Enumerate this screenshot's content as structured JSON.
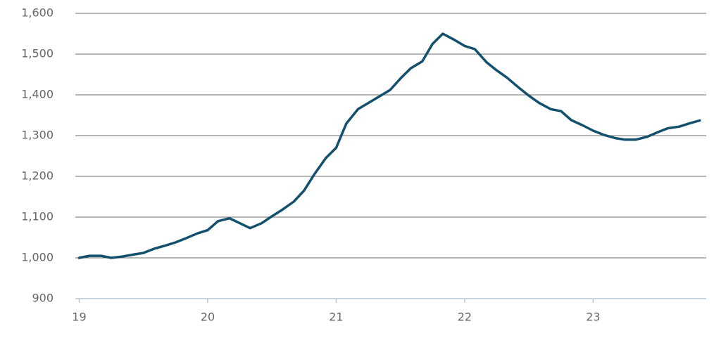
{
  "chart_data": {
    "type": "line",
    "x": [
      19.0,
      19.08,
      19.17,
      19.25,
      19.33,
      19.42,
      19.5,
      19.58,
      19.67,
      19.75,
      19.83,
      19.92,
      20.0,
      20.08,
      20.17,
      20.25,
      20.33,
      20.42,
      20.5,
      20.58,
      20.67,
      20.75,
      20.83,
      20.92,
      21.0,
      21.08,
      21.17,
      21.25,
      21.33,
      21.42,
      21.5,
      21.58,
      21.67,
      21.75,
      21.83,
      21.92,
      22.0,
      22.08,
      22.17,
      22.25,
      22.33,
      22.42,
      22.5,
      22.58,
      22.67,
      22.75,
      22.83,
      22.92,
      23.0,
      23.08,
      23.17,
      23.25,
      23.33,
      23.42,
      23.5,
      23.58,
      23.67,
      23.75,
      23.83
    ],
    "values": [
      1000,
      1005,
      1005,
      1000,
      1003,
      1008,
      1012,
      1022,
      1030,
      1038,
      1048,
      1060,
      1068,
      1090,
      1097,
      1085,
      1073,
      1085,
      1102,
      1118,
      1138,
      1165,
      1205,
      1245,
      1270,
      1330,
      1365,
      1380,
      1395,
      1412,
      1440,
      1465,
      1482,
      1525,
      1550,
      1535,
      1520,
      1512,
      1480,
      1460,
      1442,
      1418,
      1398,
      1380,
      1365,
      1360,
      1338,
      1325,
      1312,
      1302,
      1294,
      1290,
      1290,
      1297,
      1308,
      1318,
      1322,
      1330,
      1337
    ],
    "color": "#12506e",
    "xlim": [
      18.97,
      23.88
    ],
    "xticks": [
      19,
      20,
      21,
      22,
      23
    ],
    "ylim": [
      900,
      1600
    ],
    "yticks": [
      900,
      {
        "value": 1000,
        "label": "1,000"
      },
      {
        "value": 1100,
        "label": "1,100"
      },
      {
        "value": 1200,
        "label": "1,200"
      },
      {
        "value": 1300,
        "label": "1,300"
      },
      {
        "value": 1400,
        "label": "1,400"
      },
      {
        "value": 1500,
        "label": "1,500"
      },
      {
        "value": 1600,
        "label": "1,600"
      }
    ],
    "grid": true
  }
}
